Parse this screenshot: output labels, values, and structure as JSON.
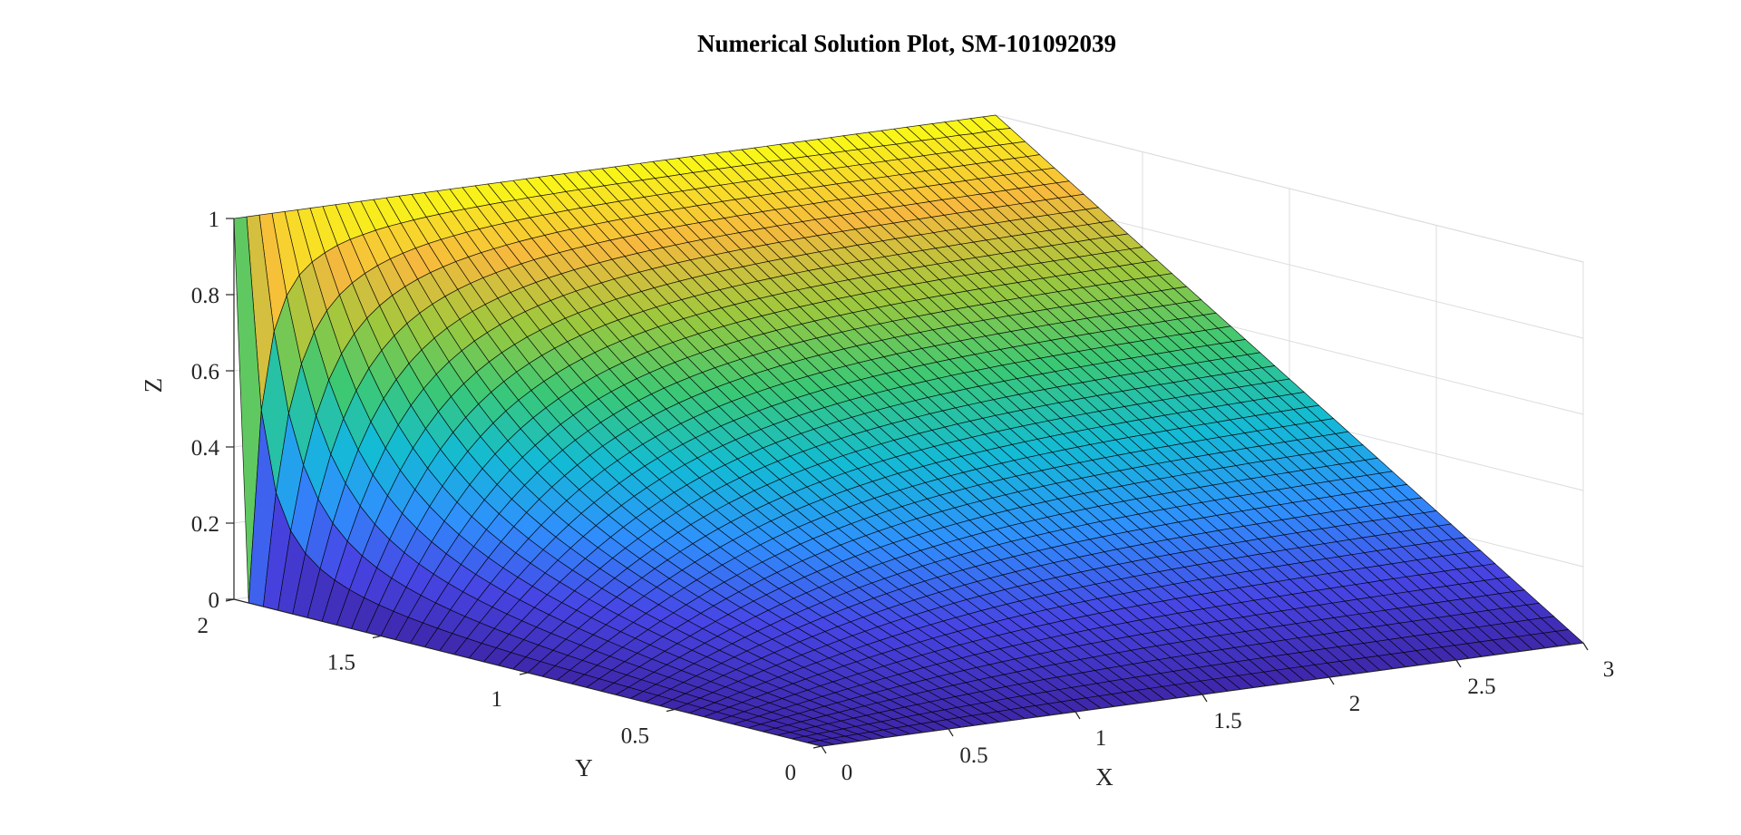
{
  "chart_data": {
    "type": "surface",
    "title": "Numerical Solution Plot, SM-101092039",
    "xlabel": "X",
    "ylabel": "Y",
    "zlabel": "Z",
    "xlim": [
      0,
      3
    ],
    "ylim": [
      0,
      2
    ],
    "zlim": [
      0,
      1
    ],
    "x_ticks": [
      "0",
      "0.5",
      "1",
      "1.5",
      "2",
      "2.5",
      "3"
    ],
    "y_ticks": [
      "0",
      "0.5",
      "1",
      "1.5",
      "2"
    ],
    "z_ticks": [
      "0",
      "0.2",
      "0.4",
      "0.6",
      "0.8",
      "1"
    ],
    "grid": true,
    "colormap": [
      "#3e26a8",
      "#4745e5",
      "#2f90fd",
      "#13bbd5",
      "#3bc875",
      "#9ec83d",
      "#f6b93e",
      "#f9fb14"
    ],
    "boundary_conditions": {
      "x0": 0,
      "x3": "Y/2",
      "y0": 0,
      "y2": 1
    },
    "mesh": {
      "nx": 60,
      "ny": 40
    }
  }
}
